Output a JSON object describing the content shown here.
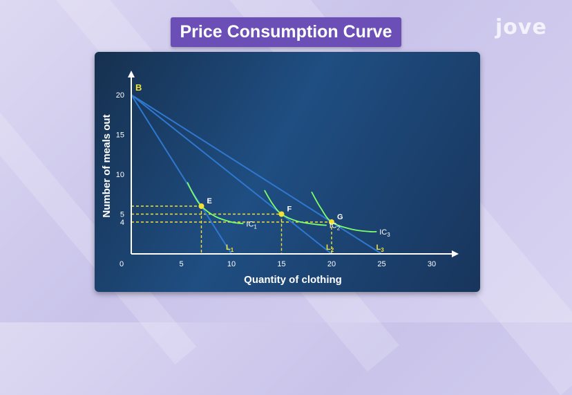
{
  "slide_title": "Price Consumption Curve",
  "logo_text": "jove",
  "colors": {
    "title_bg": "#6c4fb6",
    "budget_line": "#2f78d0",
    "indifference_curve": "#7dff6a",
    "guide": "#f2e233",
    "point": "#f2e233"
  },
  "chart_data": {
    "type": "diagram",
    "xlabel": "Quantity of clothing",
    "ylabel": "Number of meals out",
    "xlim": [
      0,
      30
    ],
    "ylim": [
      0,
      21
    ],
    "x_ticks": [
      {
        "value": 0,
        "label": "0"
      },
      {
        "value": 5,
        "label": "5"
      },
      {
        "value": 10,
        "label": "10"
      },
      {
        "value": 15,
        "label": "15"
      },
      {
        "value": 20,
        "label": "20"
      },
      {
        "value": 25,
        "label": "25"
      },
      {
        "value": 30,
        "label": "30"
      }
    ],
    "y_ticks": [
      {
        "value": 4,
        "label": "4"
      },
      {
        "value": 5,
        "label": "5"
      },
      {
        "value": 10,
        "label": "10"
      },
      {
        "value": 15,
        "label": "15"
      },
      {
        "value": 20,
        "label": "20"
      }
    ],
    "origin_point": {
      "label": "B",
      "x": 0,
      "y": 20
    },
    "budget_lines": [
      {
        "label": "L",
        "sub": "1",
        "x_intercept": 10,
        "y_intercept": 20
      },
      {
        "label": "L",
        "sub": "2",
        "x_intercept": 20,
        "y_intercept": 20
      },
      {
        "label": "L",
        "sub": "3",
        "x_intercept": 25,
        "y_intercept": 20
      }
    ],
    "equilibrium_points": [
      {
        "label": "E",
        "x": 7,
        "y": 6
      },
      {
        "label": "F",
        "x": 15,
        "y": 5
      },
      {
        "label": "G",
        "x": 20,
        "y": 4
      }
    ],
    "indifference_curves": [
      {
        "label": "IC",
        "sub": "1",
        "points": [
          [
            5.6,
            9
          ],
          [
            6.2,
            7.5
          ],
          [
            7,
            6
          ],
          [
            8.4,
            4.7
          ],
          [
            10,
            4
          ],
          [
            11.2,
            3.8
          ]
        ]
      },
      {
        "label": "IC",
        "sub": "2",
        "points": [
          [
            13.3,
            8
          ],
          [
            14.1,
            6.3
          ],
          [
            15,
            5
          ],
          [
            16.6,
            4.1
          ],
          [
            18.5,
            3.7
          ],
          [
            19.5,
            3.6
          ]
        ]
      },
      {
        "label": "IC",
        "sub": "3",
        "points": [
          [
            18,
            7.8
          ],
          [
            18.9,
            5.8
          ],
          [
            20,
            4
          ],
          [
            22,
            3.1
          ],
          [
            23.8,
            2.8
          ],
          [
            24.5,
            2.8
          ]
        ]
      }
    ]
  }
}
